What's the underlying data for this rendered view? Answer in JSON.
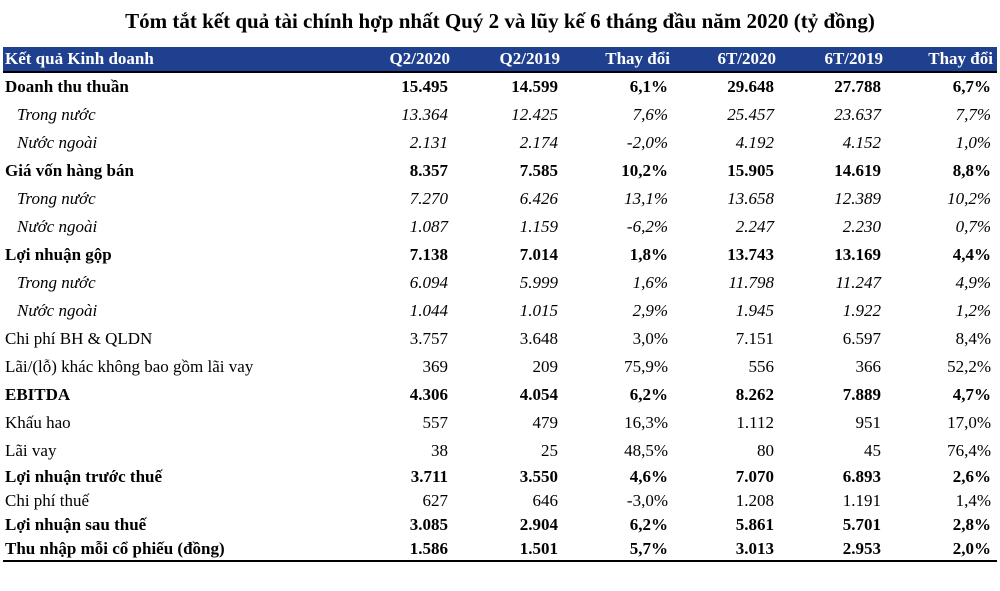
{
  "title": "Tóm tắt kết quả tài chính hợp nhất Quý 2 và lũy kế 6 tháng đầu năm 2020 (tỷ đồng)",
  "header_color": "#1f3f8f",
  "columns": [
    "Kết quả Kinh doanh",
    "Q2/2020",
    "Q2/2019",
    "Thay đổi",
    "6T/2020",
    "6T/2019",
    "Thay đổi"
  ],
  "rows": [
    {
      "label": "Doanh thu thuần",
      "style": "bold",
      "values": [
        "15.495",
        "14.599",
        "6,1%",
        "29.648",
        "27.788",
        "6,7%"
      ]
    },
    {
      "label": "Trong nước",
      "style": "italic",
      "values": [
        "13.364",
        "12.425",
        "7,6%",
        "25.457",
        "23.637",
        "7,7%"
      ]
    },
    {
      "label": "Nước ngoài",
      "style": "italic",
      "values": [
        "2.131",
        "2.174",
        "-2,0%",
        "4.192",
        "4.152",
        "1,0%"
      ]
    },
    {
      "label": "Giá vốn hàng bán",
      "style": "bold",
      "values": [
        "8.357",
        "7.585",
        "10,2%",
        "15.905",
        "14.619",
        "8,8%"
      ]
    },
    {
      "label": "Trong nước",
      "style": "italic",
      "values": [
        "7.270",
        "6.426",
        "13,1%",
        "13.658",
        "12.389",
        "10,2%"
      ]
    },
    {
      "label": "Nước ngoài",
      "style": "italic",
      "values": [
        "1.087",
        "1.159",
        "-6,2%",
        "2.247",
        "2.230",
        "0,7%"
      ]
    },
    {
      "label": "Lợi nhuận gộp",
      "style": "bold",
      "values": [
        "7.138",
        "7.014",
        "1,8%",
        "13.743",
        "13.169",
        "4,4%"
      ]
    },
    {
      "label": "Trong nước",
      "style": "italic",
      "values": [
        "6.094",
        "5.999",
        "1,6%",
        "11.798",
        "11.247",
        "4,9%"
      ]
    },
    {
      "label": "Nước ngoài",
      "style": "italic",
      "values": [
        "1.044",
        "1.015",
        "2,9%",
        "1.945",
        "1.922",
        "1,2%"
      ]
    },
    {
      "label": "Chi phí BH & QLDN",
      "style": "normal",
      "values": [
        "3.757",
        "3.648",
        "3,0%",
        "7.151",
        "6.597",
        "8,4%"
      ]
    },
    {
      "label": "Lãi/(lỗ) khác không bao gồm lãi vay",
      "style": "normal",
      "values": [
        "369",
        "209",
        "75,9%",
        "556",
        "366",
        "52,2%"
      ]
    },
    {
      "label": "EBITDA",
      "style": "bold",
      "values": [
        "4.306",
        "4.054",
        "6,2%",
        "8.262",
        "7.889",
        "4,7%"
      ]
    },
    {
      "label": "Khấu hao",
      "style": "normal",
      "values": [
        "557",
        "479",
        "16,3%",
        "1.112",
        "951",
        "17,0%"
      ]
    },
    {
      "label": "Lãi vay",
      "style": "normal",
      "values": [
        "38",
        "25",
        "48,5%",
        "80",
        "45",
        "76,4%"
      ]
    },
    {
      "label": "Lợi nhuận trước thuế",
      "style": "bold tight",
      "values": [
        "3.711",
        "3.550",
        "4,6%",
        "7.070",
        "6.893",
        "2,6%"
      ]
    },
    {
      "label": "Chi phí thuế",
      "style": "normal tight",
      "values": [
        "627",
        "646",
        "-3,0%",
        "1.208",
        "1.191",
        "1,4%"
      ]
    },
    {
      "label": "Lợi nhuận sau thuế",
      "style": "bold tight",
      "values": [
        "3.085",
        "2.904",
        "6,2%",
        "5.861",
        "5.701",
        "2,8%"
      ]
    },
    {
      "label": "Thu nhập mỗi cổ phiếu (đồng)",
      "style": "bold last",
      "values": [
        "1.586",
        "1.501",
        "5,7%",
        "3.013",
        "2.953",
        "2,0%"
      ]
    }
  ]
}
